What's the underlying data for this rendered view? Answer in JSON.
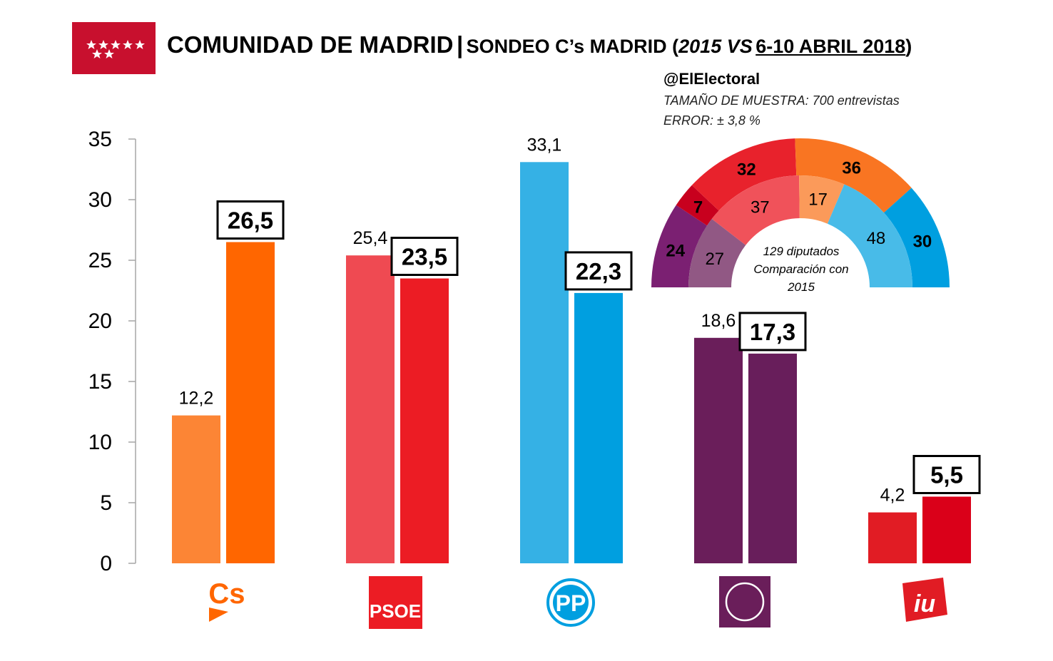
{
  "header": {
    "title_main": "COMUNIDAD DE MADRID",
    "separator": "|",
    "title_sub_prefix": "SONDEO C’s MADRID (",
    "title_sub_year": "2015 VS",
    "title_sub_dates": "6-10 ABRIL 2018",
    "title_sub_suffix": ")",
    "handle": "@ElElectoral",
    "sample": "TAMAÑO DE MUESTRA: 700 entrevistas",
    "error": "ERROR: ± 3,8 %"
  },
  "logos": {
    "cs": "Cs",
    "psoe": "PSOE",
    "pp": "PP",
    "iu": "iu"
  },
  "chart_data": [
    {
      "type": "bar",
      "categories": [
        "Cs",
        "PSOE",
        "PP",
        "Podemos",
        "IU"
      ],
      "series": [
        {
          "name": "2015",
          "values": [
            12.2,
            25.4,
            33.1,
            18.6,
            4.2
          ]
        },
        {
          "name": "6-10 ABRIL 2018",
          "values": [
            26.5,
            23.5,
            22.3,
            17.3,
            5.5
          ]
        }
      ],
      "value_labels_2015": [
        "12,2",
        "25,4",
        "33,1",
        "18,6",
        "4,2"
      ],
      "value_labels_2018": [
        "26,5",
        "23,5",
        "22,3",
        "17,3",
        "5,5"
      ],
      "colors_2015": [
        "#fc8535",
        "#ef4a52",
        "#35b1e5",
        "#6a1e5a",
        "#e11c24"
      ],
      "colors_2018": [
        "#ff6600",
        "#ec1c24",
        "#009fe0",
        "#681e5b",
        "#da0019"
      ],
      "ylim": [
        0,
        35
      ],
      "yticks": [
        "0",
        "5",
        "10",
        "15",
        "20",
        "25",
        "30",
        "35"
      ],
      "grid": false
    },
    {
      "type": "pie",
      "subtype": "hemicycle",
      "center_text": [
        "129 diputados",
        "Comparación con",
        "2015"
      ],
      "outer": [
        {
          "value": 24,
          "label": "24",
          "color": "#7b2072"
        },
        {
          "value": 7,
          "label": "7",
          "color": "#c8001e"
        },
        {
          "value": 32,
          "label": "32",
          "color": "#e8222c"
        },
        {
          "value": 36,
          "label": "36",
          "color": "#f97522"
        },
        {
          "value": 30,
          "label": "30",
          "color": "#009fe0"
        }
      ],
      "inner": [
        {
          "value": 27,
          "label": "27",
          "color": "#915884"
        },
        {
          "value": 37,
          "label": "37",
          "color": "#f0525a"
        },
        {
          "value": 17,
          "label": "17",
          "color": "#fb9a5a"
        },
        {
          "value": 48,
          "label": "48",
          "color": "#48bbe8"
        }
      ]
    }
  ]
}
